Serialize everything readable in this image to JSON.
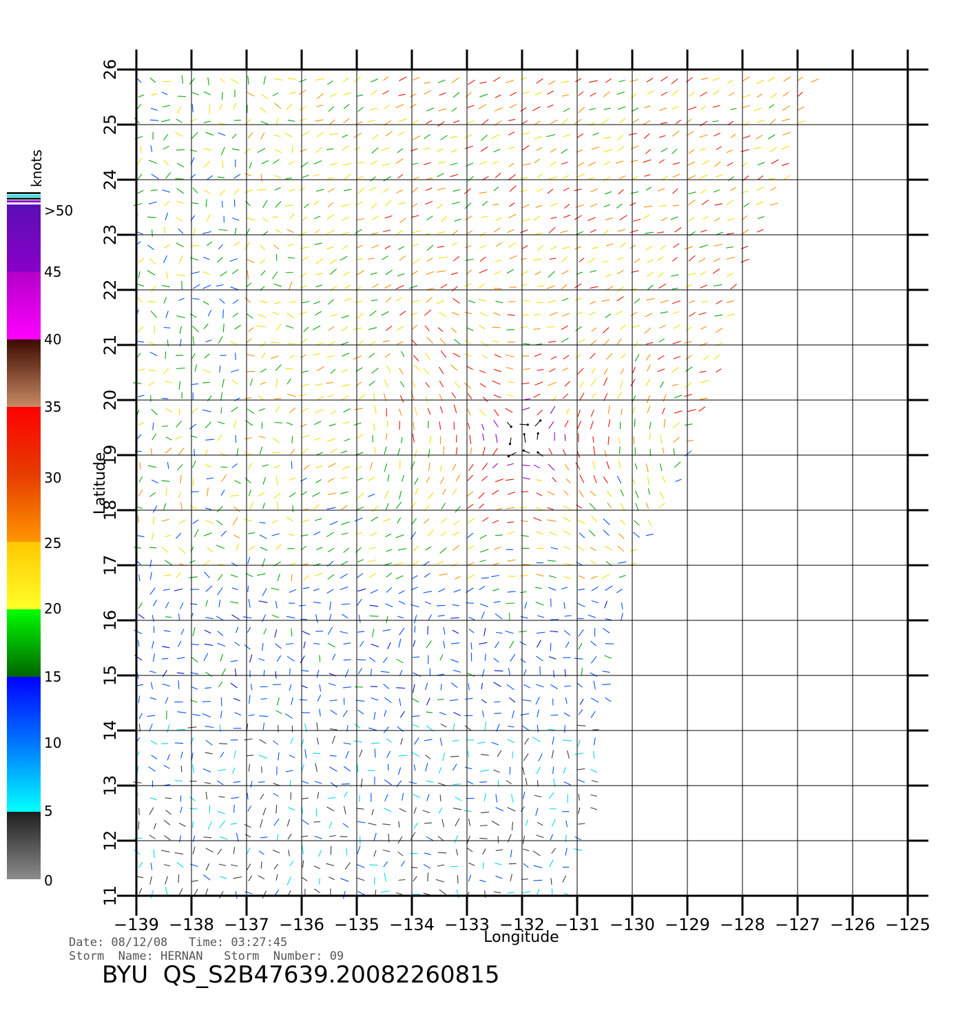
{
  "chart_data": {
    "type": "wind-vector map",
    "xlabel": "Longitude",
    "ylabel": "Latitude",
    "xlim": [
      -139,
      -125
    ],
    "ylim": [
      11,
      26
    ],
    "x_ticks": [
      "−139",
      "−138",
      "−137",
      "−136",
      "−135",
      "−134",
      "−133",
      "−132",
      "−131",
      "−130",
      "−129",
      "−128",
      "−127",
      "−126",
      "−125"
    ],
    "y_ticks": [
      "11",
      "12",
      "13",
      "14",
      "15",
      "16",
      "17",
      "18",
      "19",
      "20",
      "21",
      "22",
      "23",
      "24",
      "25",
      "26"
    ],
    "grid": true,
    "storm_center": {
      "lon": -132.0,
      "lat": 19.3
    },
    "colorbar": {
      "unit": "knots",
      "labels": [
        ">50",
        "45",
        "40",
        "35",
        "30",
        "25",
        "20",
        "15",
        "10",
        "5",
        "0"
      ],
      "bands": [
        {
          "range": "45-50",
          "colors": [
            "#5a0fb4",
            "#8a00c8"
          ]
        },
        {
          "range": "40-45",
          "colors": [
            "#b400c8",
            "#ff00ff"
          ]
        },
        {
          "range": "35-40",
          "colors": [
            "#3c0a00",
            "#c88a64"
          ]
        },
        {
          "range": "30-35",
          "colors": [
            "#ff0000",
            "#e63c00"
          ]
        },
        {
          "range": "25-30",
          "colors": [
            "#e63c00",
            "#ff9600"
          ]
        },
        {
          "range": "20-25",
          "colors": [
            "#ffc800",
            "#ffff28"
          ]
        },
        {
          "range": "15-20",
          "colors": [
            "#00ff00",
            "#006400"
          ]
        },
        {
          "range": "10-15",
          "colors": [
            "#0000ff",
            "#0078ff"
          ]
        },
        {
          "range": "5-10",
          "colors": [
            "#0078ff",
            "#00ffff"
          ]
        },
        {
          "range": "0-5",
          "colors": [
            "#1e1e1e",
            "#8c8c8c"
          ]
        }
      ],
      "vector_colors": {
        "black": "#000000",
        "gray": "#3a3a3a",
        "cyan": "#00d8e8",
        "blue": "#0050ff",
        "darkblue": "#0010cc",
        "green": "#00a800",
        "yellow": "#f0e000",
        "orange": "#ff8c00",
        "red": "#e81000",
        "purple": "#8a00c8"
      }
    }
  },
  "meta": {
    "date_line": "Date: 08/12/08   Time: 03:27:45",
    "storm_line": "Storm  Name: HERNAN   Storm  Number: 09",
    "product_id": "BYU  QS_S2B47639.20082260815"
  }
}
